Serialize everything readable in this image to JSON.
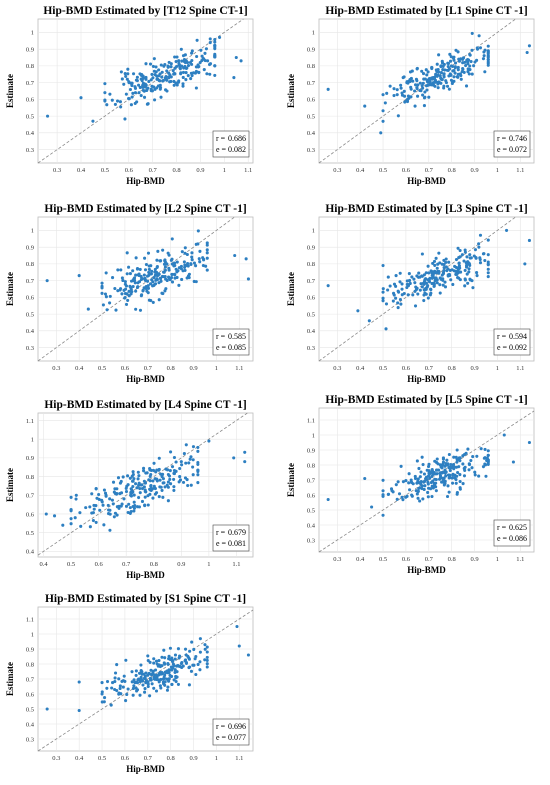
{
  "chart_data": [
    {
      "type": "scatter",
      "title": "Hip-BMD Estimated by [T12 Spine CT-1]",
      "xlabel": "Hip-BMD",
      "ylabel": "Estimate",
      "xlim": [
        0.22,
        1.12
      ],
      "ylim": [
        0.22,
        1.08
      ],
      "xticks": [
        "0.3",
        "0.4",
        "0.5",
        "0.6",
        "0.7",
        "0.8",
        "0.9",
        "1",
        "1.1"
      ],
      "yticks": [
        "0.3",
        "0.4",
        "0.5",
        "0.6",
        "0.7",
        "0.8",
        "0.9",
        "1"
      ],
      "r_label": "r =",
      "r_value": "0.686",
      "e_label": "e =",
      "e_value": "0.082",
      "identity_line": true,
      "grid": true,
      "stats_box": "bottom-right",
      "point_color": "#2d7fc1",
      "seed": 11,
      "r": 0.686,
      "e": 0.082,
      "n_points": 230,
      "outliers": [
        [
          0.26,
          0.5
        ],
        [
          0.4,
          0.61
        ],
        [
          0.45,
          0.47
        ],
        [
          0.98,
          0.97
        ],
        [
          1.05,
          0.85
        ],
        [
          1.07,
          0.83
        ],
        [
          1.04,
          0.73
        ]
      ]
    },
    {
      "type": "scatter",
      "title": "Hip-BMD Estimated by [L1 Spine CT -1]",
      "xlabel": "Hip-BMD",
      "ylabel": "Estimate",
      "xlim": [
        0.22,
        1.16
      ],
      "ylim": [
        0.22,
        1.08
      ],
      "xticks": [
        "0.3",
        "0.4",
        "0.5",
        "0.6",
        "0.7",
        "0.8",
        "0.9",
        "1",
        "1.1"
      ],
      "yticks": [
        "0.3",
        "0.4",
        "0.5",
        "0.6",
        "0.7",
        "0.8",
        "0.9",
        "1"
      ],
      "r_label": "r =",
      "r_value": "0.746",
      "e_label": "e =",
      "e_value": "0.072",
      "identity_line": true,
      "grid": true,
      "stats_box": "bottom-right",
      "point_color": "#2d7fc1",
      "seed": 23,
      "r": 0.746,
      "e": 0.072,
      "n_points": 230,
      "outliers": [
        [
          0.26,
          0.66
        ],
        [
          0.42,
          0.56
        ],
        [
          0.49,
          0.4
        ],
        [
          1.13,
          0.88
        ],
        [
          1.14,
          0.92
        ],
        [
          0.92,
          0.98
        ]
      ]
    },
    {
      "type": "scatter",
      "title": "Hip-BMD Estimated by [L2 Spine CT -1]",
      "xlabel": "Hip-BMD",
      "ylabel": "Estimate",
      "xlim": [
        0.22,
        1.16
      ],
      "ylim": [
        0.22,
        1.08
      ],
      "xticks": [
        "0.3",
        "0.4",
        "0.5",
        "0.6",
        "0.7",
        "0.8",
        "0.9",
        "1",
        "1.1"
      ],
      "yticks": [
        "0.3",
        "0.4",
        "0.5",
        "0.6",
        "0.7",
        "0.8",
        "0.9",
        "1"
      ],
      "r_label": "r =",
      "r_value": "0.585",
      "e_label": "e =",
      "e_value": "0.085",
      "identity_line": true,
      "grid": true,
      "stats_box": "bottom-right",
      "point_color": "#2d7fc1",
      "seed": 37,
      "r": 0.585,
      "e": 0.085,
      "n_points": 230,
      "outliers": [
        [
          0.26,
          0.7
        ],
        [
          0.4,
          0.73
        ],
        [
          0.44,
          0.53
        ],
        [
          1.13,
          0.83
        ],
        [
          1.14,
          0.71
        ],
        [
          1.08,
          0.85
        ]
      ]
    },
    {
      "type": "scatter",
      "title": "Hip-BMD Estimated by [L3 Spine CT -1]",
      "xlabel": "Hip-BMD",
      "ylabel": "Estimate",
      "xlim": [
        0.22,
        1.16
      ],
      "ylim": [
        0.22,
        1.08
      ],
      "xticks": [
        "0.3",
        "0.4",
        "0.5",
        "0.6",
        "0.7",
        "0.8",
        "0.9",
        "1",
        "1.1"
      ],
      "yticks": [
        "0.3",
        "0.4",
        "0.5",
        "0.6",
        "0.7",
        "0.8",
        "0.9",
        "1"
      ],
      "r_label": "r =",
      "r_value": "0.594",
      "e_label": "e =",
      "e_value": "0.092",
      "identity_line": true,
      "grid": true,
      "stats_box": "bottom-right",
      "point_color": "#2d7fc1",
      "seed": 41,
      "r": 0.594,
      "e": 0.092,
      "n_points": 230,
      "outliers": [
        [
          0.26,
          0.67
        ],
        [
          0.39,
          0.52
        ],
        [
          0.44,
          0.46
        ],
        [
          1.04,
          1.0
        ],
        [
          1.14,
          0.94
        ],
        [
          1.12,
          0.8
        ]
      ]
    },
    {
      "type": "scatter",
      "title": "Hip-BMD Estimated by [L4 Spine CT -1]",
      "xlabel": "Hip-BMD",
      "ylabel": "Estimate",
      "xlim": [
        0.38,
        1.16
      ],
      "ylim": [
        0.37,
        1.14
      ],
      "xticks": [
        "0.4",
        "0.5",
        "0.6",
        "0.7",
        "0.8",
        "0.9",
        "1",
        "1.1"
      ],
      "yticks": [
        "0.4",
        "0.5",
        "0.6",
        "0.7",
        "0.8",
        "0.9",
        "1",
        "1.1"
      ],
      "r_label": "r =",
      "r_value": "0.679",
      "e_label": "e =",
      "e_value": "0.081",
      "identity_line": true,
      "grid": true,
      "stats_box": "bottom-right",
      "point_color": "#2d7fc1",
      "seed": 53,
      "r": 0.679,
      "e": 0.081,
      "n_points": 230,
      "outliers": [
        [
          0.41,
          0.6
        ],
        [
          0.44,
          0.59
        ],
        [
          0.47,
          0.54
        ],
        [
          1.0,
          0.99
        ],
        [
          1.13,
          0.93
        ],
        [
          1.13,
          0.88
        ],
        [
          1.09,
          0.9
        ]
      ]
    },
    {
      "type": "scatter",
      "title": "Hip-BMD Estimated by [L5 Spine CT -1]",
      "xlabel": "Hip-BMD",
      "ylabel": "Estimate",
      "xlim": [
        0.22,
        1.16
      ],
      "ylim": [
        0.22,
        1.18
      ],
      "xticks": [
        "0.3",
        "0.4",
        "0.5",
        "0.6",
        "0.7",
        "0.8",
        "0.9",
        "1",
        "1.1"
      ],
      "yticks": [
        "0.3",
        "0.4",
        "0.5",
        "0.6",
        "0.7",
        "0.8",
        "0.9",
        "1",
        "1.1"
      ],
      "r_label": "r =",
      "r_value": "0.625",
      "e_label": "e =",
      "e_value": "0.086",
      "identity_line": true,
      "grid": true,
      "stats_box": "bottom-right",
      "point_color": "#2d7fc1",
      "seed": 67,
      "r": 0.625,
      "e": 0.086,
      "n_points": 230,
      "outliers": [
        [
          0.26,
          0.57
        ],
        [
          0.42,
          0.71
        ],
        [
          0.45,
          0.52
        ],
        [
          1.03,
          1.0
        ],
        [
          1.14,
          0.95
        ],
        [
          1.07,
          0.82
        ]
      ]
    },
    {
      "type": "scatter",
      "title": "Hip-BMD Estimated by [S1 Spine CT -1]",
      "xlabel": "Hip-BMD",
      "ylabel": "Estimate",
      "xlim": [
        0.22,
        1.16
      ],
      "ylim": [
        0.22,
        1.18
      ],
      "xticks": [
        "0.3",
        "0.4",
        "0.5",
        "0.6",
        "0.7",
        "0.8",
        "0.9",
        "1",
        "1.1"
      ],
      "yticks": [
        "0.3",
        "0.4",
        "0.5",
        "0.6",
        "0.7",
        "0.8",
        "0.9",
        "1",
        "1.1"
      ],
      "r_label": "r =",
      "r_value": "0.696",
      "e_label": "e =",
      "e_value": "0.077",
      "identity_line": true,
      "grid": true,
      "stats_box": "bottom-right",
      "point_color": "#2d7fc1",
      "seed": 79,
      "r": 0.696,
      "e": 0.077,
      "n_points": 230,
      "outliers": [
        [
          0.26,
          0.5
        ],
        [
          0.4,
          0.49
        ],
        [
          0.4,
          0.68
        ],
        [
          1.09,
          1.05
        ],
        [
          1.14,
          0.86
        ],
        [
          1.1,
          0.92
        ]
      ]
    }
  ]
}
